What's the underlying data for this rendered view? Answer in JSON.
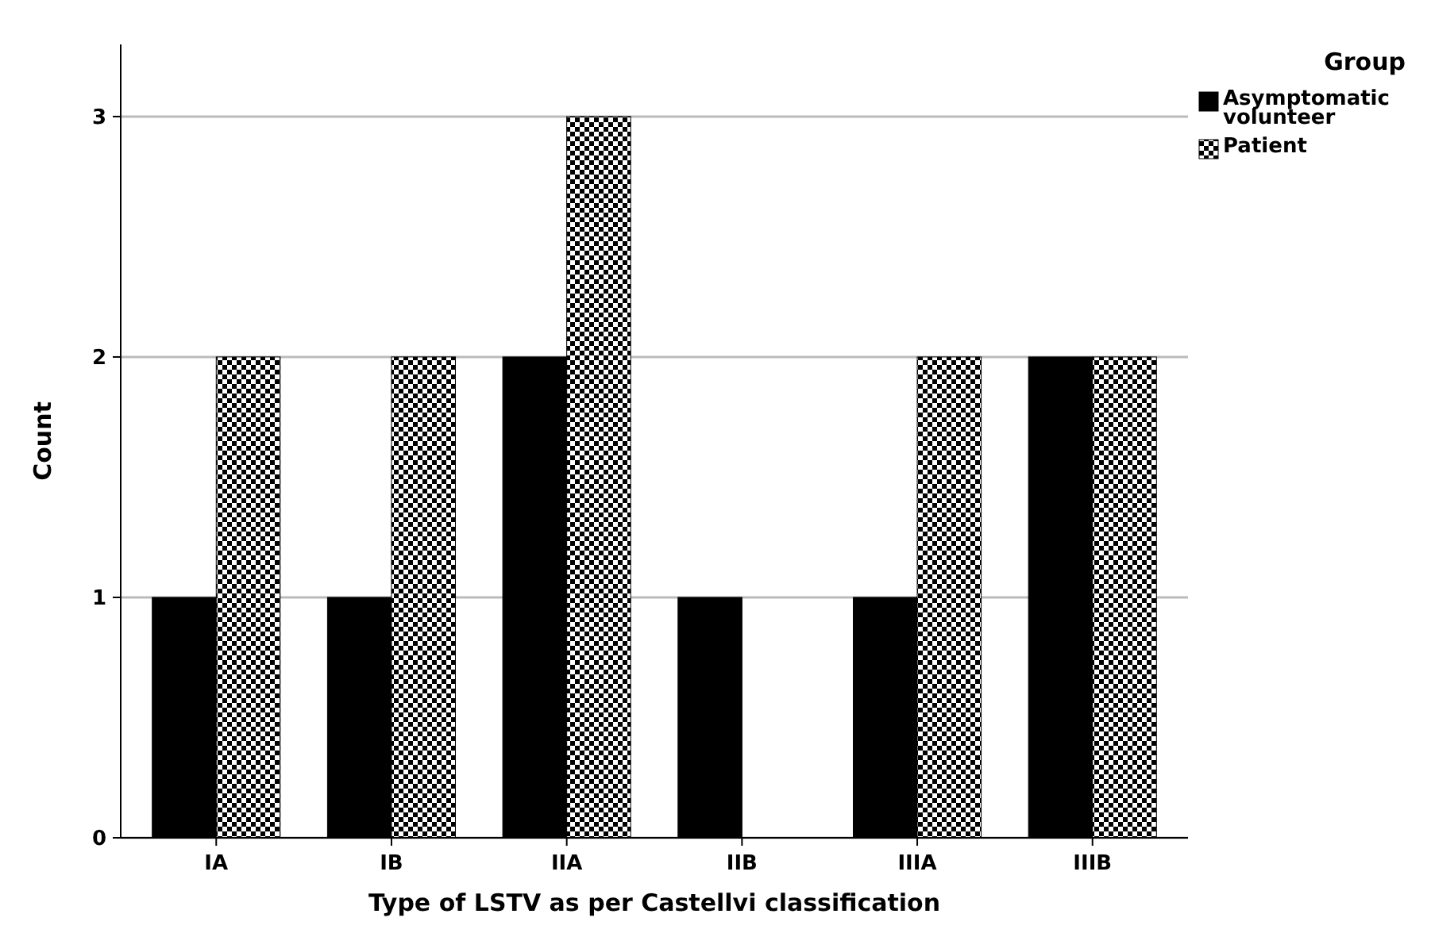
{
  "chart_data": {
    "type": "bar",
    "xlabel": "Type of LSTV as per Castellvi classification",
    "ylabel": "Count",
    "legend_title": "Group",
    "categories": [
      "IA",
      "IB",
      "IIA",
      "IIB",
      "IIIA",
      "IIIB"
    ],
    "series": [
      {
        "name": "Asymptomatic volunteer",
        "color": "#000000",
        "values": [
          1,
          1,
          2,
          1,
          1,
          2
        ]
      },
      {
        "name": "Patient",
        "color": "#000000",
        "values": [
          2,
          2,
          3,
          0,
          2,
          2
        ]
      }
    ],
    "ylim": [
      0,
      3.3
    ],
    "yticks": [
      0,
      1,
      2,
      3
    ],
    "grid": "y",
    "legend": "top right"
  }
}
